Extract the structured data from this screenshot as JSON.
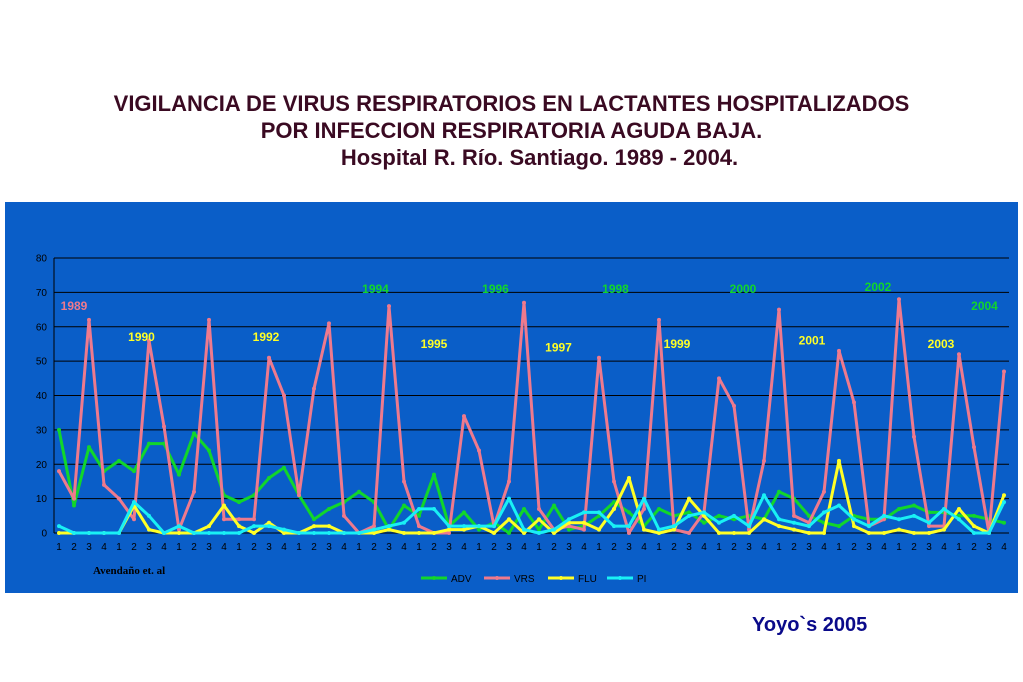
{
  "title": {
    "line1": "VIGILANCIA DE VIRUS RESPIRATORIOS EN LACTANTES HOSPITALIZADOS",
    "line2": "POR INFECCION RESPIRATORIA AGUDA BAJA.",
    "line3": "Hospital R. Río. Santiago. 1989 - 2004."
  },
  "credit": "Yoyo`s 2005",
  "chart_data": {
    "type": "line",
    "ylim": [
      0,
      80
    ],
    "yticks": [
      0,
      10,
      20,
      30,
      40,
      50,
      60,
      70,
      80
    ],
    "grid": true,
    "legend_position": "bottom",
    "source_note": "Avendaño et. al",
    "categories": [
      "1",
      "2",
      "3",
      "4",
      "1",
      "2",
      "3",
      "4",
      "1",
      "2",
      "3",
      "4",
      "1",
      "2",
      "3",
      "4",
      "1",
      "2",
      "3",
      "4",
      "1",
      "2",
      "3",
      "4",
      "1",
      "2",
      "3",
      "4",
      "1",
      "2",
      "3",
      "4",
      "1",
      "2",
      "3",
      "4",
      "1",
      "2",
      "3",
      "4",
      "1",
      "2",
      "3",
      "4",
      "1",
      "2",
      "3",
      "4",
      "1",
      "2",
      "3",
      "4",
      "1",
      "2",
      "3",
      "4",
      "1",
      "2",
      "3",
      "4",
      "1",
      "2",
      "3",
      "4"
    ],
    "series": [
      {
        "name": "ADV",
        "color": "#11d62b",
        "values": [
          30,
          8,
          25,
          18,
          21,
          18,
          26,
          26,
          17,
          29,
          24,
          11,
          9,
          11,
          16,
          19,
          11,
          4,
          7,
          9,
          12,
          9,
          1,
          8,
          5,
          17,
          2,
          6,
          1,
          3,
          0,
          7,
          1,
          8,
          1,
          2,
          5,
          9,
          6,
          2,
          7,
          5,
          6,
          3,
          5,
          4,
          5,
          4,
          12,
          10,
          5,
          3,
          2,
          5,
          4,
          4,
          7,
          8,
          6,
          6,
          5,
          5,
          4,
          3
        ]
      },
      {
        "name": "VRS",
        "color": "#ee7a8d",
        "values": [
          18,
          10,
          62,
          14,
          10,
          4,
          56,
          31,
          1,
          12,
          62,
          4,
          4,
          4,
          51,
          40,
          11,
          42,
          61,
          5,
          0,
          2,
          66,
          15,
          2,
          0,
          0,
          34,
          24,
          2,
          15,
          67,
          7,
          1,
          2,
          1,
          51,
          15,
          0,
          7,
          62,
          1,
          0,
          6,
          45,
          37,
          1,
          21,
          65,
          5,
          3,
          12,
          53,
          38,
          2,
          4,
          68,
          28,
          2,
          2,
          52,
          25,
          0,
          47
        ]
      },
      {
        "name": "FLU",
        "color": "#ffff26",
        "values": [
          0,
          0,
          0,
          0,
          0,
          8,
          1,
          0,
          0,
          0,
          2,
          8,
          2,
          0,
          3,
          0,
          0,
          2,
          2,
          0,
          0,
          0,
          1,
          0,
          0,
          0,
          1,
          1,
          2,
          0,
          4,
          0,
          4,
          0,
          3,
          3,
          1,
          7,
          16,
          1,
          0,
          1,
          10,
          5,
          0,
          0,
          0,
          4,
          2,
          1,
          0,
          0,
          21,
          2,
          0,
          0,
          1,
          0,
          0,
          1,
          7,
          2,
          0,
          11
        ]
      },
      {
        "name": "PI",
        "color": "#19f0f5",
        "values": [
          2,
          0,
          0,
          0,
          0,
          9,
          5,
          0,
          2,
          0,
          0,
          0,
          0,
          2,
          2,
          1,
          0,
          0,
          0,
          0,
          0,
          1,
          2,
          3,
          7,
          7,
          2,
          2,
          2,
          2,
          10,
          1,
          0,
          1,
          4,
          6,
          6,
          2,
          2,
          10,
          1,
          2,
          5,
          6,
          3,
          5,
          2,
          11,
          4,
          3,
          2,
          6,
          8,
          4,
          2,
          5,
          4,
          5,
          3,
          7,
          4,
          0,
          0,
          9
        ]
      }
    ],
    "annotations": [
      {
        "text": "1989",
        "year_index": 1,
        "y": 66,
        "color": "#ee7a8d"
      },
      {
        "text": "1990",
        "year_index": 5.5,
        "y": 57,
        "color": "#ffff26"
      },
      {
        "text": "1992",
        "year_index": 13.8,
        "y": 57,
        "color": "#ffff26"
      },
      {
        "text": "1994",
        "year_index": 21.1,
        "y": 71,
        "color": "#11d62b"
      },
      {
        "text": "1995",
        "year_index": 25,
        "y": 55,
        "color": "#ffff26"
      },
      {
        "text": "1996",
        "year_index": 29.1,
        "y": 71,
        "color": "#11d62b"
      },
      {
        "text": "1997",
        "year_index": 33.3,
        "y": 54,
        "color": "#ffff26"
      },
      {
        "text": "1998",
        "year_index": 37.1,
        "y": 71,
        "color": "#11d62b"
      },
      {
        "text": "1999",
        "year_index": 41.2,
        "y": 55,
        "color": "#ffff26"
      },
      {
        "text": "2000",
        "year_index": 45.6,
        "y": 71,
        "color": "#11d62b"
      },
      {
        "text": "2001",
        "year_index": 50.2,
        "y": 56,
        "color": "#ffff26"
      },
      {
        "text": "2002",
        "year_index": 54.6,
        "y": 71.5,
        "color": "#11d62b"
      },
      {
        "text": "2003",
        "year_index": 58.8,
        "y": 55,
        "color": "#ffff26"
      },
      {
        "text": "2004",
        "year_index": 61.7,
        "y": 66,
        "color": "#11d62b"
      }
    ]
  }
}
